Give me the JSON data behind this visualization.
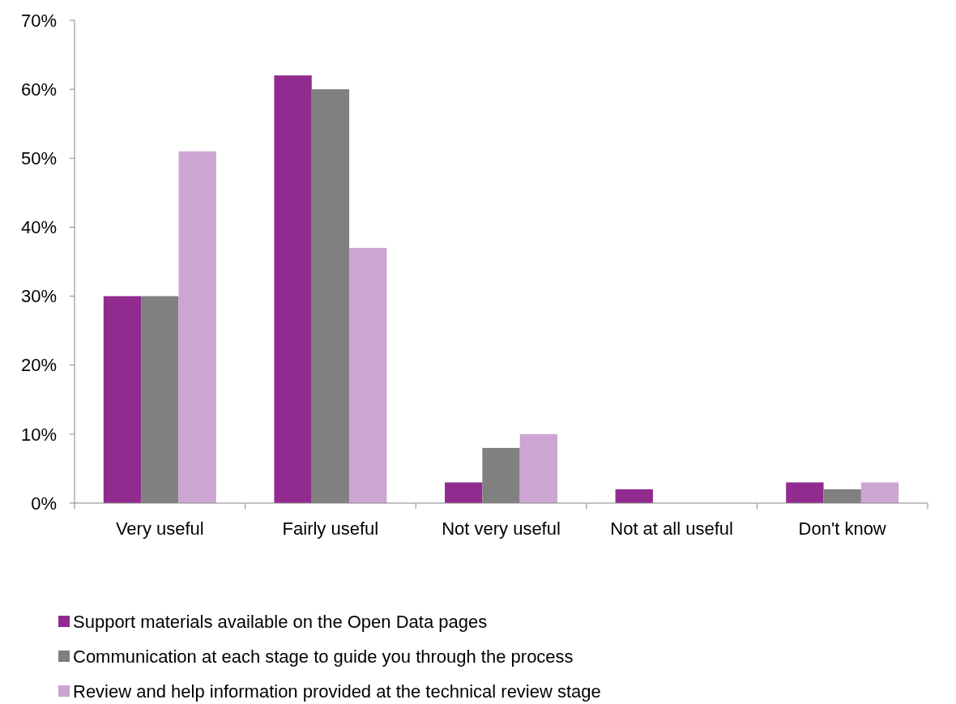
{
  "chart_data": {
    "type": "bar",
    "categories": [
      "Very useful",
      "Fairly useful",
      "Not very useful",
      "Not at all useful",
      "Don't know"
    ],
    "series": [
      {
        "name": "Support materials available on the Open Data pages",
        "color": "#922b8f",
        "values": [
          30,
          62,
          3,
          2,
          3
        ]
      },
      {
        "name": "Communication at each stage to guide you through the process",
        "color": "#808080",
        "values": [
          30,
          60,
          8,
          0,
          2
        ]
      },
      {
        "name": "Review and help information provided at the technical review stage",
        "color": "#cda5d3",
        "values": [
          51,
          37,
          10,
          0,
          3
        ]
      }
    ],
    "ylim": [
      0,
      70
    ],
    "yticks": [
      {
        "value": 0,
        "label": "0%"
      },
      {
        "value": 10,
        "label": "10%"
      },
      {
        "value": 20,
        "label": "20%"
      },
      {
        "value": 30,
        "label": "30%"
      },
      {
        "value": 40,
        "label": "40%"
      },
      {
        "value": 50,
        "label": "50%"
      },
      {
        "value": 60,
        "label": "60%"
      },
      {
        "value": 70,
        "label": "70%"
      }
    ],
    "grid": false,
    "legend": "bottom"
  }
}
